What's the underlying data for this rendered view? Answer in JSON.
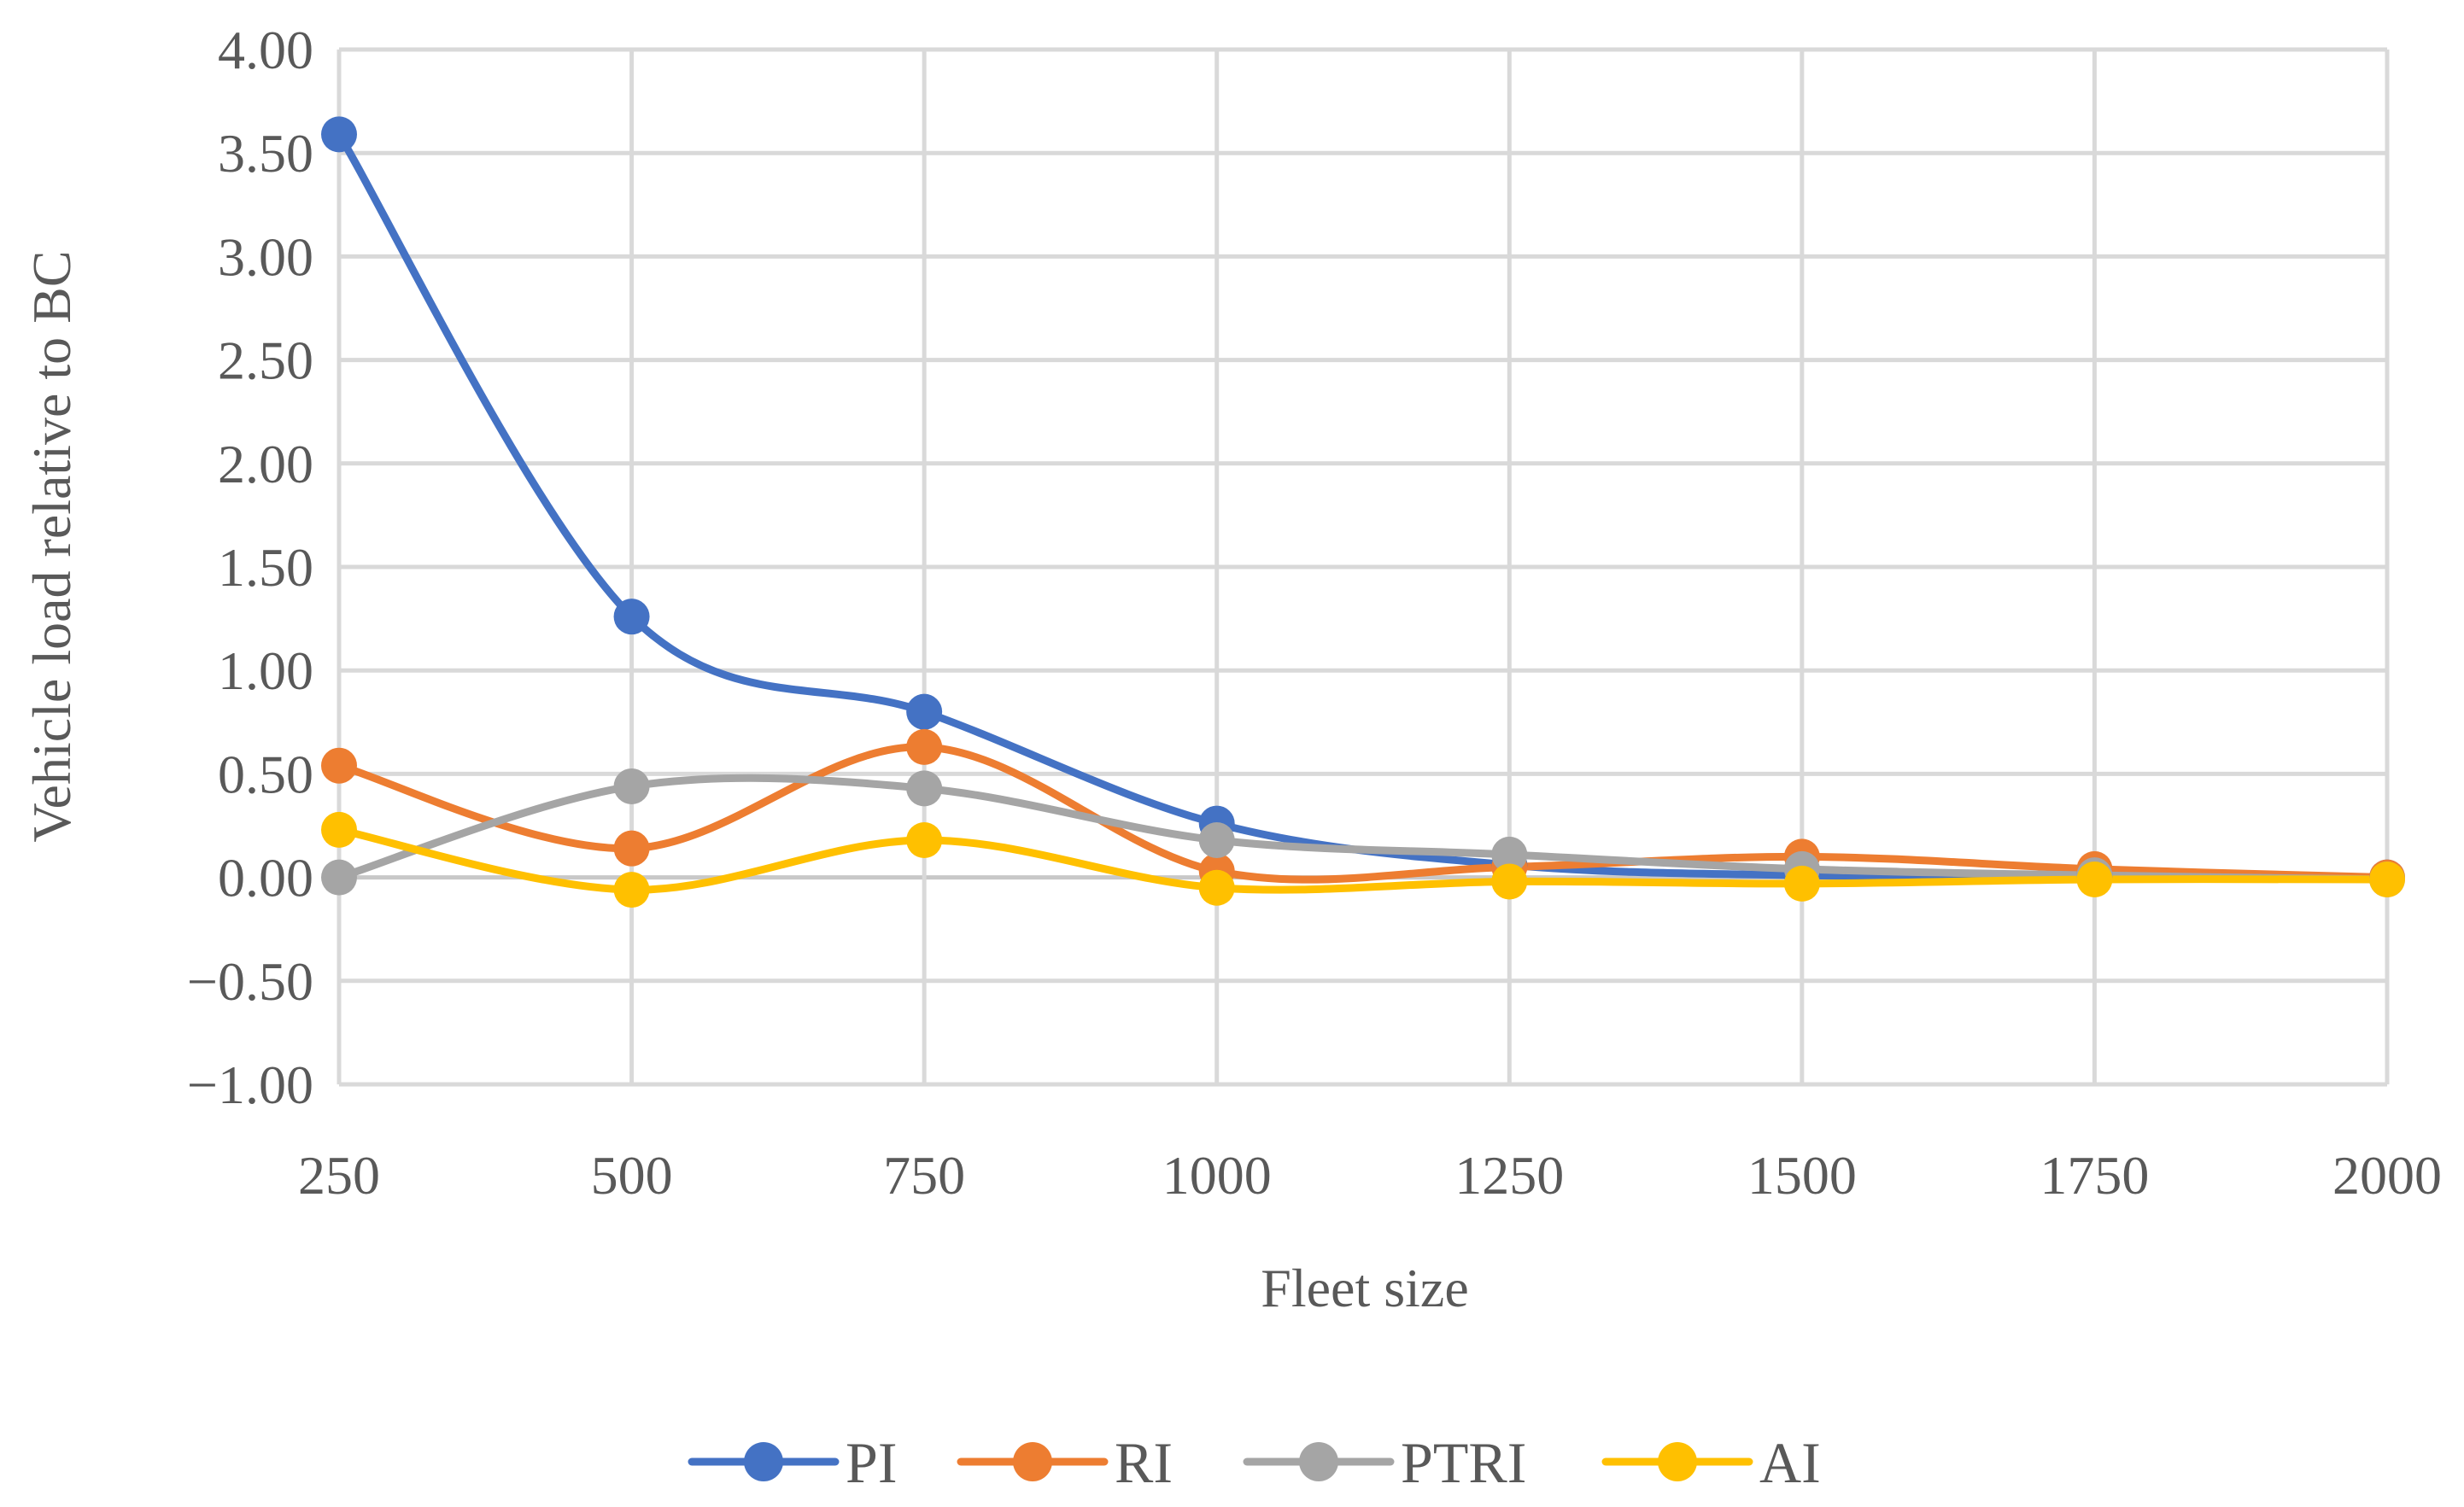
{
  "chart_data": {
    "type": "line",
    "smooth": true,
    "x": [
      250,
      500,
      750,
      1000,
      1250,
      1500,
      1750,
      2000
    ],
    "x_tick_labels": [
      "250",
      "500",
      "750",
      "1000",
      "1250",
      "1500",
      "1750",
      "2000"
    ],
    "y_tick_labels": [
      "4.00",
      "3.50",
      "3.00",
      "2.50",
      "2.00",
      "1.50",
      "1.00",
      "0.50",
      "0.00",
      "−0.50",
      "−1.00"
    ],
    "ylim": [
      -1.0,
      4.0
    ],
    "xlabel": "Fleet size",
    "ylabel": "Vehicle load relative to BC",
    "grid": true,
    "legend_position": "bottom",
    "series": [
      {
        "name": "PI",
        "color": "#4472C4",
        "values": [
          3.59,
          1.26,
          0.8,
          0.26,
          0.06,
          0.01,
          0.01,
          0.0
        ]
      },
      {
        "name": "RI",
        "color": "#ED7D31",
        "values": [
          0.54,
          0.14,
          0.63,
          0.03,
          0.05,
          0.1,
          0.04,
          0.0
        ]
      },
      {
        "name": "PTRI",
        "color": "#A5A5A5",
        "values": [
          0.0,
          0.44,
          0.43,
          0.18,
          0.11,
          0.04,
          0.01,
          -0.01
        ]
      },
      {
        "name": "AI",
        "color": "#FFC000",
        "values": [
          0.23,
          -0.06,
          0.18,
          -0.05,
          -0.02,
          -0.03,
          -0.01,
          -0.01
        ]
      }
    ]
  }
}
